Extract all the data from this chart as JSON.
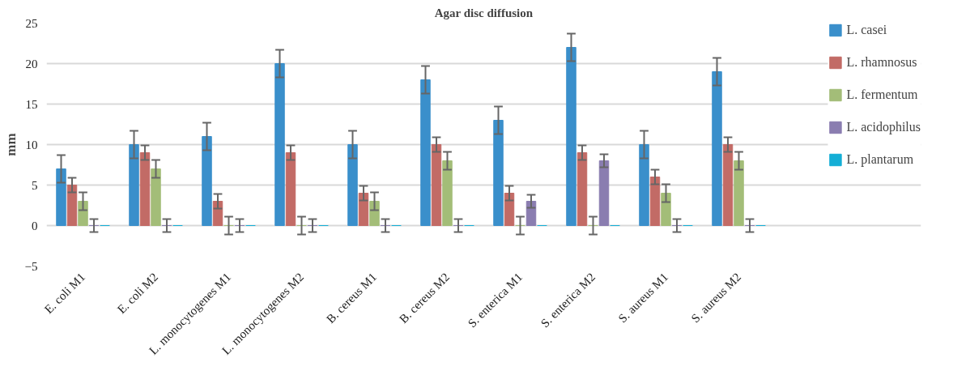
{
  "chart_data": {
    "type": "bar",
    "title": "Agar disc diffusion",
    "ylabel": "mm",
    "categories": [
      "E. coli M1",
      "E. coli M2",
      "L. monocytogenes M1",
      "L. monocytogenes M2",
      "B. cereus M1",
      "B. cereus M2",
      "S. enterica M1",
      "S. enterica M2",
      "S. aureus M1",
      "S. aureus M2"
    ],
    "series": [
      {
        "name": "L. casei",
        "color": "#3a8fcb",
        "values": [
          7,
          10,
          11,
          20,
          10,
          18,
          13,
          22,
          10,
          19
        ],
        "errors": [
          1.7,
          1.7,
          1.7,
          1.7,
          1.7,
          1.7,
          1.7,
          1.7,
          1.7,
          1.7
        ]
      },
      {
        "name": "L. rhamnosus",
        "color": "#c26b66",
        "values": [
          5,
          9,
          3,
          9,
          4,
          10,
          4,
          9,
          6,
          10
        ],
        "errors": [
          0.9,
          0.9,
          0.9,
          0.9,
          0.9,
          0.9,
          0.9,
          0.9,
          0.9,
          0.9
        ]
      },
      {
        "name": "L. fermentum",
        "color": "#a3bd78",
        "values": [
          3,
          7,
          0,
          0,
          3,
          8,
          0,
          0,
          4,
          8
        ],
        "errors": [
          1.1,
          1.1,
          1.1,
          1.1,
          1.1,
          1.1,
          1.1,
          1.1,
          1.1,
          1.1
        ]
      },
      {
        "name": "L. acidophilus",
        "color": "#8a7db0",
        "values": [
          0,
          0,
          0,
          0,
          0,
          0,
          3,
          8,
          0,
          0
        ],
        "errors": [
          0.8,
          0.8,
          0.8,
          0.8,
          0.8,
          0.8,
          0.8,
          0.8,
          0.8,
          0.8
        ]
      },
      {
        "name": "L. plantarum",
        "color": "#14aed6",
        "values": [
          0,
          0,
          0,
          0,
          0,
          0,
          0,
          0,
          0,
          0
        ]
      }
    ],
    "ylim": [
      -5,
      25
    ],
    "yticks": [
      -5,
      0,
      5,
      10,
      15,
      20,
      25
    ],
    "grid": "y",
    "legend": "right"
  }
}
